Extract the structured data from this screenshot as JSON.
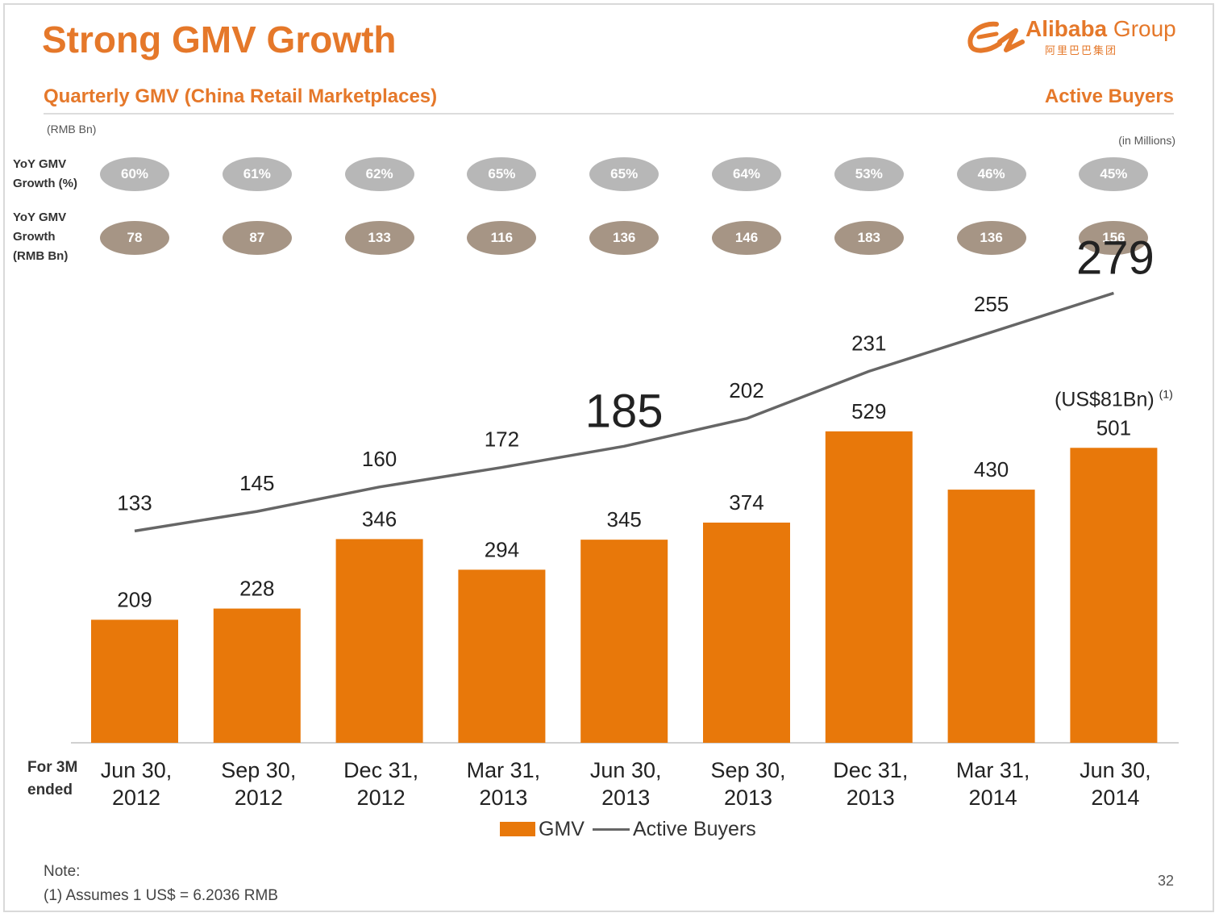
{
  "title": "Strong GMV Growth",
  "logo": {
    "name": "Alibaba",
    "suffix": "Group",
    "sub": "阿里巴巴集团"
  },
  "subtitle": "Quarterly GMV (China Retail Marketplaces)",
  "active_buyers_heading": "Active Buyers",
  "unit_left": "(RMB Bn)",
  "unit_right": "(in Millions)",
  "row_labels": {
    "yoy_pct": [
      "YoY GMV",
      "Growth (%)"
    ],
    "yoy_abs": [
      "YoY GMV",
      "Growth",
      "(RMB Bn)"
    ]
  },
  "yoy_growth_pct": [
    "60%",
    "61%",
    "62%",
    "65%",
    "65%",
    "64%",
    "53%",
    "46%",
    "45%"
  ],
  "yoy_growth_rmb": [
    "78",
    "87",
    "133",
    "116",
    "136",
    "146",
    "183",
    "136",
    "156"
  ],
  "x_prefix": [
    "For 3M",
    "ended"
  ],
  "annotation": "(US$81Bn)",
  "annotation_sup": "(1)",
  "legend": {
    "bar": "GMV",
    "line": "Active Buyers"
  },
  "note": {
    "label": "Note:",
    "items": [
      "(1)    Assumes 1 US$ = 6.2036 RMB"
    ]
  },
  "page_number": "32",
  "colors": {
    "accent": "#e5782a",
    "bar": "#e8780a",
    "line": "#666666",
    "pill_pct": "#b7b7b7",
    "pill_abs": "#a69585"
  },
  "chart_data": {
    "type": "bar",
    "categories": [
      [
        "Jun 30,",
        "2012"
      ],
      [
        "Sep 30,",
        "2012"
      ],
      [
        "Dec 31,",
        "2012"
      ],
      [
        "Mar 31,",
        "2013"
      ],
      [
        "Jun 30,",
        "2013"
      ],
      [
        "Sep 30,",
        "2013"
      ],
      [
        "Dec 31,",
        "2013"
      ],
      [
        "Mar 31,",
        "2014"
      ],
      [
        "Jun 30,",
        "2014"
      ]
    ],
    "series": [
      {
        "name": "GMV",
        "type": "bar",
        "values": [
          209,
          228,
          346,
          294,
          345,
          374,
          529,
          430,
          501
        ]
      },
      {
        "name": "Active Buyers",
        "type": "line",
        "values": [
          133,
          145,
          160,
          172,
          185,
          202,
          231,
          255,
          279
        ]
      }
    ],
    "emphasized_line_labels": [
      185,
      279
    ],
    "legend_position": "bottom-center",
    "grid": false
  }
}
